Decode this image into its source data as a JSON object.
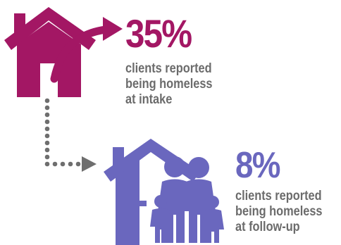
{
  "colors": {
    "intake": "#a31764",
    "followup": "#6a67be",
    "text": "#6b6b6b",
    "dots": "#6e6e6e"
  },
  "intake": {
    "percent": "35%",
    "description_lines": [
      "clients reported",
      "being homeless",
      "at intake"
    ]
  },
  "followup": {
    "percent": "8%",
    "description_lines": [
      "clients reported",
      "being homeless",
      "at follow-up"
    ]
  },
  "icons": {
    "intake": "house-icon",
    "followup": "house-with-family-icon",
    "arrow": "curved-arrow-icon",
    "connector": "dotted-arrow-icon"
  }
}
